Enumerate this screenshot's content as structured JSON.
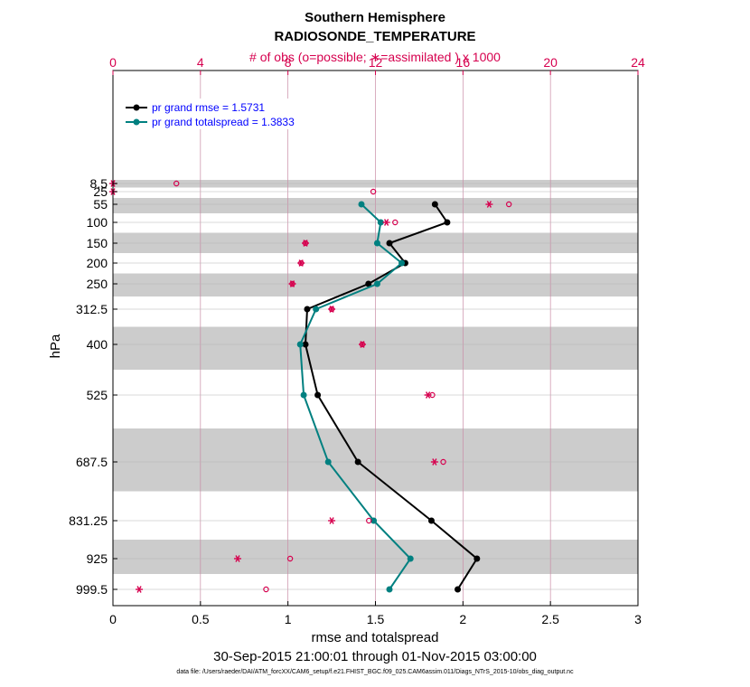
{
  "chart_data": {
    "type": "line",
    "title": "Southern Hemisphere",
    "subtitle": "RADIOSONDE_TEMPERATURE",
    "top_axis_label": "# of obs (o=possible; ∗=assimilated ) x 1000",
    "xlabel": "rmse and totalspread",
    "ylabel": "hPa",
    "date_range": "30-Sep-2015 21:00:01 through 01-Nov-2015 03:00:00",
    "data_file": "data file: /Users/raeder/DAI/ATM_forcXX/CAM6_setup/f.e21.FHIST_BGC.f09_025.CAM6assim.011/Diags_NTrS_2015-10/obs_diag_output.nc",
    "xlim": [
      0,
      3
    ],
    "x_ticks": [
      "0",
      "0.5",
      "1",
      "1.5",
      "2",
      "2.5",
      "3"
    ],
    "top_xlim": [
      0,
      24
    ],
    "top_ticks": [
      "0",
      "4",
      "8",
      "12",
      "16",
      "20",
      "24"
    ],
    "levels": [
      8.5,
      25,
      55,
      100,
      150,
      200,
      250,
      312.5,
      400,
      525,
      687.5,
      831.25,
      925,
      999.5
    ],
    "level_labels": [
      "8.5",
      "25",
      "55",
      "100",
      "150",
      "200",
      "250",
      "312.5",
      "400",
      "525",
      "687.5",
      "831.25",
      "925",
      "999.5"
    ],
    "legend_placement": "top-left",
    "colors": {
      "rmse": "#000000",
      "spread": "#008080",
      "obs": "#d6004e",
      "band": "#cccccc",
      "grid": "#c98ca6",
      "legend_text": "#0000ff"
    },
    "series": [
      {
        "name": "pr grand rmse = 1.5731",
        "key": "rmse",
        "values": [
          null,
          null,
          1.84,
          1.91,
          1.58,
          1.67,
          1.46,
          1.11,
          1.1,
          1.17,
          1.4,
          1.82,
          2.08,
          1.97
        ]
      },
      {
        "name": "pr grand totalspread = 1.3833",
        "key": "spread",
        "values": [
          null,
          null,
          1.42,
          1.53,
          1.51,
          1.65,
          1.51,
          1.16,
          1.07,
          1.09,
          1.23,
          1.49,
          1.7,
          1.58
        ]
      }
    ],
    "obs_possible": [
      2.9,
      11.9,
      18.1,
      12.9,
      8.8,
      8.6,
      8.2,
      10.0,
      11.4,
      14.6,
      15.1,
      11.7,
      8.1,
      7.0
    ],
    "obs_assimilated": [
      0.0,
      0.0,
      17.2,
      12.5,
      8.8,
      8.6,
      8.2,
      10.0,
      11.4,
      14.4,
      14.7,
      10.0,
      5.7,
      1.2
    ]
  }
}
